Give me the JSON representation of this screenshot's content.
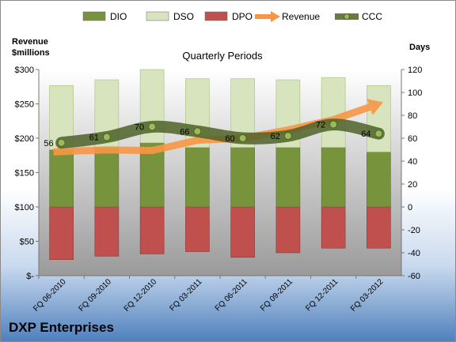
{
  "chart_data": {
    "type": "bar",
    "title": "Quarterly Periods",
    "company": "DXP Enterprises",
    "y_left_label_line1": "Revenue",
    "y_left_label_line2": "$millions",
    "y_right_label": "Days",
    "categories": [
      "FQ 06-2010",
      "FQ 09-2010",
      "FQ 12-2010",
      "FQ 03-2011",
      "FQ 06-2011",
      "FQ 09-2011",
      "FQ 12-2011",
      "FQ 03-2012"
    ],
    "left_axis": {
      "min": 0,
      "max": 300,
      "step": 50,
      "ticks": [
        "$-",
        "$50",
        "$100",
        "$150",
        "$200",
        "$250",
        "$300"
      ]
    },
    "right_axis": {
      "min": -60,
      "max": 120,
      "step": 20,
      "ticks": [
        "-60",
        "-40",
        "-20",
        "0",
        "20",
        "40",
        "60",
        "80",
        "100",
        "120"
      ]
    },
    "series": [
      {
        "name": "DIO",
        "kind": "stacked-bar",
        "axis": "right",
        "color": "#77933c",
        "values": [
          50,
          52,
          56,
          52,
          52,
          52,
          52,
          48
        ]
      },
      {
        "name": "DSO",
        "kind": "stacked-bar",
        "axis": "right",
        "color": "#d7e4bd",
        "values": [
          56,
          59,
          64,
          60,
          60,
          59,
          61,
          58
        ]
      },
      {
        "name": "DPO",
        "kind": "stacked-bar",
        "axis": "right",
        "color": "#c0504d",
        "values": [
          -46,
          -43,
          -41,
          -39,
          -44,
          -40,
          -36,
          -36
        ]
      },
      {
        "name": "Revenue",
        "kind": "arrow-line",
        "axis": "left",
        "color": "#f79646",
        "values": [
          180,
          183,
          182,
          197,
          200,
          212,
          227,
          250
        ]
      },
      {
        "name": "CCC",
        "kind": "line",
        "axis": "right",
        "color": "#4f6228",
        "values": [
          56,
          61,
          70,
          66,
          60,
          62,
          72,
          64
        ]
      }
    ],
    "legend_position": "top",
    "grid": false
  }
}
